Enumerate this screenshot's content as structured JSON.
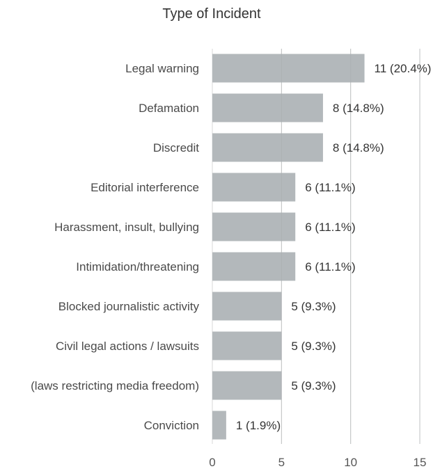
{
  "chart_data": {
    "type": "bar",
    "orientation": "horizontal",
    "title": "Type of Incident",
    "xlabel": "",
    "ylabel": "",
    "categories": [
      "Legal warning",
      "Defamation",
      "Discredit",
      "Editorial interference",
      "Harassment, insult, bullying",
      "Intimidation/threatening",
      "Blocked journalistic activity",
      "Civil legal actions / lawsuits",
      "(laws restricting media freedom)",
      "Conviction"
    ],
    "values": [
      11,
      8,
      8,
      6,
      6,
      6,
      5,
      5,
      5,
      1
    ],
    "data_labels": [
      "11 (20.4%)",
      "8 (14.8%)",
      "8 (14.8%)",
      "6 (11.1%)",
      "6 (11.1%)",
      "6 (11.1%)",
      "5 (9.3%)",
      "5 (9.3%)",
      "5 (9.3%)",
      "1 (1.9%)"
    ],
    "xlim": [
      0,
      15
    ],
    "xticks": [
      0,
      5,
      10,
      15
    ],
    "xtick_labels": [
      "0",
      "5",
      "10",
      "15"
    ],
    "grid": true,
    "legend": "none",
    "colors": {
      "bar": "#b3b8bb",
      "grid": "#d9d9d9",
      "text": "#4a4a4a"
    }
  }
}
